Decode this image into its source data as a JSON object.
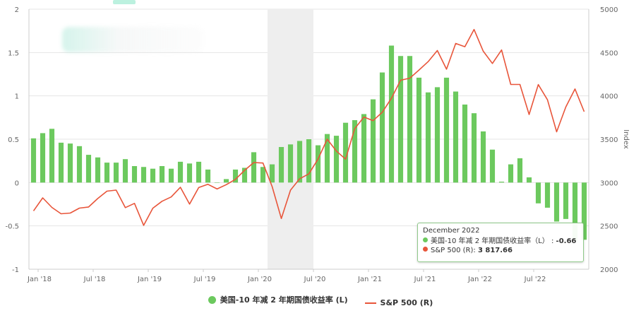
{
  "chart_data": {
    "type": "bar",
    "x_tick_labels": [
      "Jan '18",
      "Jul '18",
      "Jan '19",
      "Jul '19",
      "Jan '20",
      "Jul '20",
      "Jan '21",
      "Jul '21",
      "Jan '22",
      "Jul '22"
    ],
    "left_axis": {
      "ticks": [
        "2",
        "1.5",
        "1",
        "0.5",
        "0",
        "-0.5",
        "-1"
      ],
      "ylim": [
        -1,
        2
      ]
    },
    "right_axis": {
      "title": "Index",
      "ticks": [
        "5000",
        "4500",
        "4000",
        "3500",
        "3000",
        "2500",
        "2000"
      ],
      "ylim": [
        2000,
        5000
      ]
    },
    "shaded_period": [
      "2020-02",
      "2020-07"
    ],
    "grid": "horizontal",
    "legend_placement": "bottom",
    "months": [
      "2017-12",
      "2018-01",
      "2018-02",
      "2018-03",
      "2018-04",
      "2018-05",
      "2018-06",
      "2018-07",
      "2018-08",
      "2018-09",
      "2018-10",
      "2018-11",
      "2018-12",
      "2019-01",
      "2019-02",
      "2019-03",
      "2019-04",
      "2019-05",
      "2019-06",
      "2019-07",
      "2019-08",
      "2019-09",
      "2019-10",
      "2019-11",
      "2019-12",
      "2020-01",
      "2020-02",
      "2020-03",
      "2020-04",
      "2020-05",
      "2020-06",
      "2020-07",
      "2020-08",
      "2020-09",
      "2020-10",
      "2020-11",
      "2020-12",
      "2021-01",
      "2021-02",
      "2021-03",
      "2021-04",
      "2021-05",
      "2021-06",
      "2021-07",
      "2021-08",
      "2021-09",
      "2021-10",
      "2021-11",
      "2021-12",
      "2022-01",
      "2022-02",
      "2022-03",
      "2022-04",
      "2022-05",
      "2022-06",
      "2022-07",
      "2022-08",
      "2022-09",
      "2022-10",
      "2022-11",
      "2022-12"
    ],
    "series": [
      {
        "name": "美国-10 年减 2 年期国债收益率 (L)",
        "type": "bar",
        "axis": "left",
        "color": "#6cc95e",
        "values": [
          0.51,
          0.57,
          0.62,
          0.46,
          0.45,
          0.42,
          0.32,
          0.29,
          0.23,
          0.23,
          0.27,
          0.19,
          0.18,
          0.16,
          0.19,
          0.16,
          0.24,
          0.22,
          0.24,
          0.15,
          0.0,
          0.04,
          0.15,
          0.17,
          0.35,
          0.18,
          0.21,
          0.41,
          0.44,
          0.48,
          0.5,
          0.43,
          0.56,
          0.54,
          0.69,
          0.72,
          0.79,
          0.96,
          1.27,
          1.58,
          1.46,
          1.46,
          1.21,
          1.04,
          1.1,
          1.21,
          1.05,
          0.9,
          0.8,
          0.59,
          0.38,
          0.01,
          0.21,
          0.28,
          0.06,
          -0.24,
          -0.29,
          -0.45,
          -0.42,
          -0.67,
          -0.66
        ]
      },
      {
        "name": "S&P 500 (R)",
        "type": "line",
        "axis": "right",
        "color": "#e8553a",
        "values": [
          2673,
          2823,
          2713,
          2640,
          2648,
          2705,
          2718,
          2816,
          2901,
          2913,
          2711,
          2760,
          2506,
          2704,
          2784,
          2834,
          2946,
          2752,
          2942,
          2980,
          2926,
          2976,
          3037,
          3141,
          3231,
          3225,
          2954,
          2585,
          2912,
          3044,
          3100,
          3271,
          3500,
          3363,
          3270,
          3622,
          3756,
          3714,
          3811,
          3973,
          4181,
          4204,
          4298,
          4395,
          4523,
          4308,
          4605,
          4567,
          4766,
          4516,
          4374,
          4530,
          4132,
          4132,
          3785,
          4130,
          3955,
          3586,
          3872,
          4080,
          3818
        ]
      }
    ],
    "tooltip": {
      "title": "December 2022",
      "rows": [
        {
          "series": "美国-10 年减 2 年期国债收益率（L）",
          "value": "-0.66"
        },
        {
          "series": "S&P 500 (R)",
          "value": "3 817.66"
        }
      ]
    }
  },
  "legend": {
    "series_1": "美国-10 年减 2 年期国债收益率 (L)",
    "series_2": "S&P 500 (R)"
  }
}
